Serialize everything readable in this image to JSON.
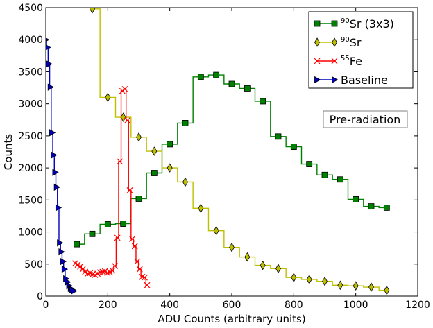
{
  "chart_data": {
    "type": "line",
    "xlabel": "ADU Counts (arbitrary units)",
    "ylabel": "Counts",
    "xlim": [
      0,
      1200
    ],
    "ylim": [
      0,
      4500
    ],
    "x_ticks": [
      0,
      200,
      400,
      600,
      800,
      1000,
      1200
    ],
    "y_ticks": [
      0,
      500,
      1000,
      1500,
      2000,
      2500,
      3000,
      3500,
      4000,
      4500
    ],
    "step": "mid",
    "grid": false,
    "legend_position": "top-right",
    "annotation": "Pre-radiation",
    "series": [
      {
        "name_sup": "90",
        "name_text": "Sr (3x3)",
        "color": "#008000",
        "marker": "square",
        "marker_color": "#008000",
        "x": [
          100,
          150,
          200,
          250,
          300,
          350,
          400,
          450,
          500,
          550,
          600,
          650,
          700,
          750,
          800,
          850,
          900,
          950,
          1000,
          1050,
          1100
        ],
        "y": [
          810,
          970,
          1120,
          1130,
          1520,
          1920,
          2370,
          2700,
          3420,
          3450,
          3310,
          3240,
          3040,
          2490,
          2330,
          2060,
          1890,
          1820,
          1510,
          1400,
          1380
        ]
      },
      {
        "name_sup": "90",
        "name_text": "Sr",
        "color": "#bfbf00",
        "marker": "thin-diamond",
        "marker_color": "#bfbf00",
        "x": [
          150,
          200,
          250,
          300,
          350,
          400,
          450,
          500,
          550,
          600,
          650,
          700,
          750,
          800,
          850,
          900,
          950,
          1000,
          1050,
          1100
        ],
        "y": [
          4480,
          3100,
          2790,
          2480,
          2260,
          2000,
          1780,
          1370,
          1020,
          760,
          610,
          480,
          430,
          290,
          260,
          230,
          170,
          160,
          140,
          90
        ]
      },
      {
        "name_sup": "55",
        "name_text": "Fe",
        "color": "#ff0000",
        "marker": "x",
        "marker_color": "#ff0000",
        "x": [
          95,
          103,
          111,
          119,
          127,
          135,
          143,
          151,
          159,
          167,
          175,
          183,
          191,
          199,
          207,
          215,
          223,
          231,
          239,
          247,
          255,
          263,
          271,
          279,
          287,
          295,
          303,
          311,
          319,
          327
        ],
        "y": [
          510,
          490,
          460,
          420,
          380,
          350,
          360,
          340,
          330,
          350,
          370,
          380,
          390,
          360,
          370,
          400,
          470,
          910,
          2100,
          3200,
          3230,
          2740,
          1650,
          890,
          780,
          540,
          420,
          300,
          290,
          170
        ]
      },
      {
        "name_sup": "",
        "name_text": "Baseline",
        "color": "#0000bf",
        "marker": "triangle-right",
        "marker_color": "#0000bf",
        "x": [
          0,
          5,
          10,
          15,
          20,
          25,
          30,
          35,
          40,
          45,
          50,
          55,
          60,
          65,
          70,
          75,
          80,
          85,
          90
        ],
        "y": [
          4000,
          3880,
          3620,
          3260,
          2550,
          2200,
          1930,
          1700,
          1380,
          830,
          690,
          540,
          420,
          270,
          220,
          160,
          120,
          100,
          80
        ]
      }
    ]
  }
}
